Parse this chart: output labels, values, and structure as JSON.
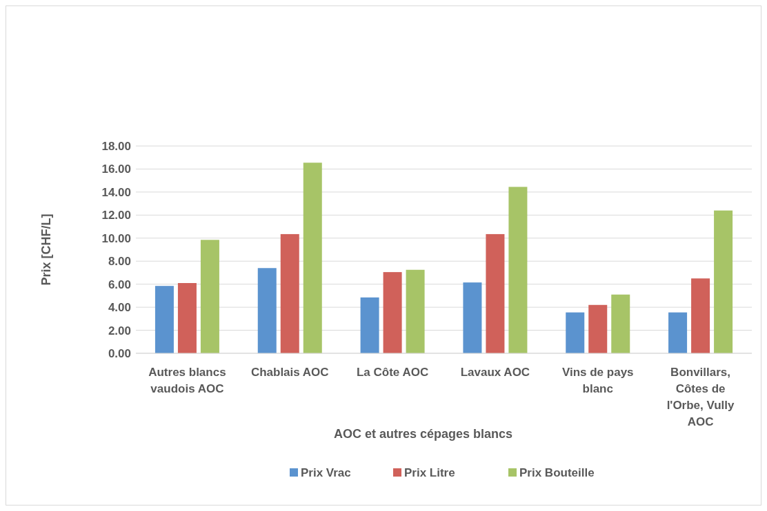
{
  "chart_data": {
    "type": "bar",
    "xlabel": "AOC et autres cépages blancs",
    "ylabel": "Prix [CHF/L]",
    "categories": [
      "Autres blancs vaudois AOC",
      "Chablais AOC",
      "La Côte AOC",
      "Lavaux AOC",
      "Vins de pays blanc",
      "Bonvillars, Côtes de l'Orbe, Vully AOC"
    ],
    "series": [
      {
        "name": "Prix Vrac",
        "color": "#5b93cf",
        "values": [
          5.85,
          7.4,
          4.85,
          6.15,
          3.55,
          3.55
        ]
      },
      {
        "name": "Prix Litre",
        "color": "#d0615a",
        "values": [
          6.1,
          10.35,
          7.05,
          10.35,
          4.2,
          6.5
        ]
      },
      {
        "name": "Prix Bouteille",
        "color": "#a7c467",
        "values": [
          9.85,
          16.55,
          7.25,
          14.45,
          5.1,
          12.4
        ]
      }
    ],
    "ylim": [
      0,
      18
    ],
    "yticks": [
      {
        "value": 0,
        "label": "0.00"
      },
      {
        "value": 2,
        "label": "2.00"
      },
      {
        "value": 4,
        "label": "4.00"
      },
      {
        "value": 6,
        "label": "6.00"
      },
      {
        "value": 8,
        "label": "8.00"
      },
      {
        "value": 10,
        "label": "10.00"
      },
      {
        "value": 12,
        "label": "12.00"
      },
      {
        "value": 14,
        "label": "14.00"
      },
      {
        "value": 16,
        "label": "16.00"
      },
      {
        "value": 18,
        "label": "18.00"
      }
    ],
    "grid": "y",
    "legend": "bottom"
  }
}
